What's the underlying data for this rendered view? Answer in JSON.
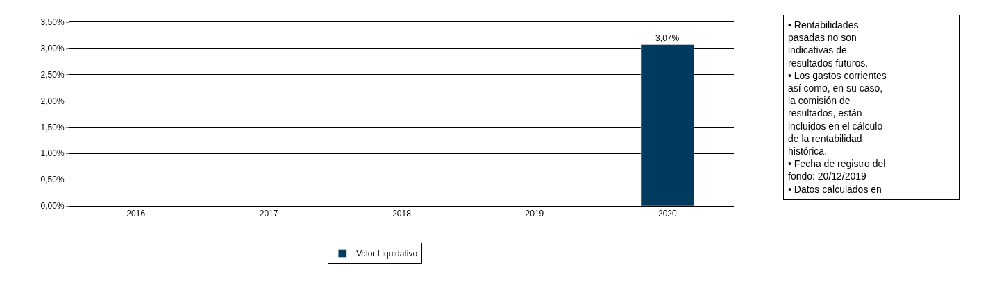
{
  "chart_data": {
    "type": "bar",
    "categories": [
      "2016",
      "2017",
      "2018",
      "2019",
      "2020"
    ],
    "series": [
      {
        "name": "Valor Liquidativo",
        "color": "#003a5d",
        "values": [
          null,
          null,
          null,
          null,
          3.07
        ],
        "value_labels": [
          null,
          null,
          null,
          null,
          "3,07%"
        ]
      }
    ],
    "ylim": [
      0,
      3.5
    ],
    "yticks": [
      {
        "value": 0,
        "label": "0,00%"
      },
      {
        "value": 0.5,
        "label": "0,50%"
      },
      {
        "value": 1,
        "label": "1,00%"
      },
      {
        "value": 1.5,
        "label": "1,50%"
      },
      {
        "value": 2,
        "label": "2,00%"
      },
      {
        "value": 2.5,
        "label": "2,50%"
      },
      {
        "value": 3,
        "label": "3,00%"
      },
      {
        "value": 3.5,
        "label": "3,50%"
      }
    ],
    "grid": "y",
    "legend": "bottom",
    "annotations": [
      "• Rentabilidades\npasadas no son\nindicativas de\nresultados futuros.\n• Los gastos corrientes\nasí como, en su caso,\nla comisión de\nresultados, están\nincluidos en el cálculo\nde la rentabilidad\nhistórica.\n• Fecha de registro del\nfondo: 20/12/2019\n• Datos calculados en"
    ]
  }
}
